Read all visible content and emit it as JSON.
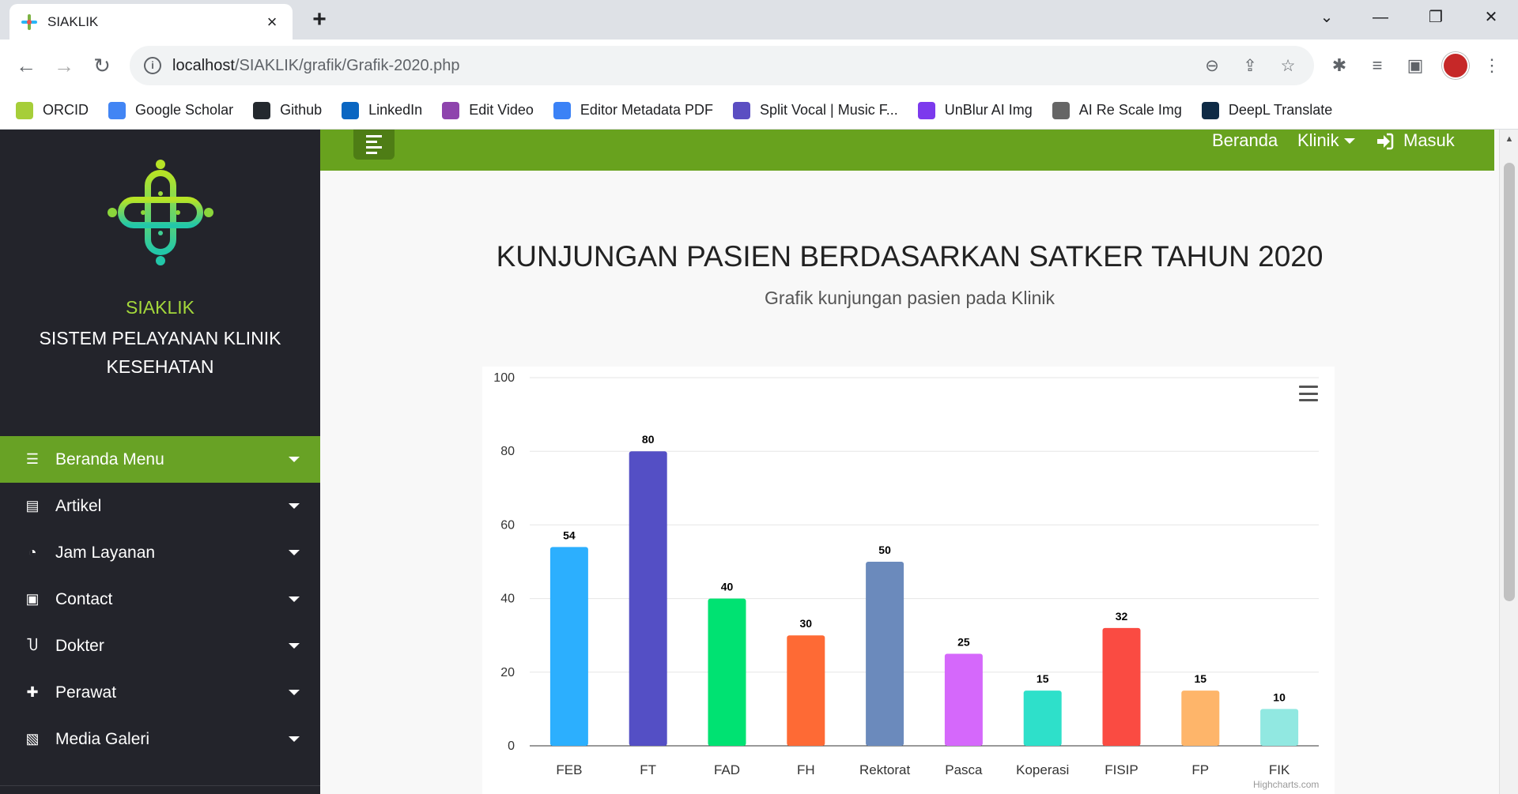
{
  "browser": {
    "tab_title": "SIAKLIK",
    "url_host": "localhost",
    "url_path": "/SIAKLIK/grafik/Grafik-2020.php",
    "bookmarks": [
      {
        "label": "ORCID",
        "icon": "orcid-icon",
        "color": "#a6ce39"
      },
      {
        "label": "Google Scholar",
        "icon": "google-scholar-icon",
        "color": "#4285f4"
      },
      {
        "label": "Github",
        "icon": "github-icon",
        "color": "#24292e"
      },
      {
        "label": "LinkedIn",
        "icon": "linkedin-icon",
        "color": "#0a66c2"
      },
      {
        "label": "Edit Video",
        "icon": "edit-video-icon",
        "color": "#8e44ad"
      },
      {
        "label": "Editor Metadata PDF",
        "icon": "metadata-pdf-icon",
        "color": "#3b82f6"
      },
      {
        "label": "Split Vocal | Music F...",
        "icon": "split-vocal-icon",
        "color": "#5b4ec2"
      },
      {
        "label": "UnBlur AI Img",
        "icon": "unblur-icon",
        "color": "#7c3aed"
      },
      {
        "label": "AI Re Scale Img",
        "icon": "rescale-icon",
        "color": "#666666"
      },
      {
        "label": "DeepL Translate",
        "icon": "deepl-icon",
        "color": "#0f2b46"
      }
    ]
  },
  "sidebar": {
    "brand_name": "SIAKLIK",
    "brand_subtitle": "SISTEM PELAYANAN KLINIK KESEHATAN",
    "menu": [
      {
        "label": "Beranda Menu",
        "icon": "list-icon",
        "active": true
      },
      {
        "label": "Artikel",
        "icon": "newspaper-icon",
        "active": false
      },
      {
        "label": "Jam Layanan",
        "icon": "clock-icon",
        "active": false
      },
      {
        "label": "Contact",
        "icon": "contact-icon",
        "active": false
      },
      {
        "label": "Dokter",
        "icon": "stethoscope-icon",
        "active": false
      },
      {
        "label": "Perawat",
        "icon": "medkit-icon",
        "active": false
      },
      {
        "label": "Media Galeri",
        "icon": "images-icon",
        "active": false
      }
    ]
  },
  "topnav": {
    "beranda": "Beranda",
    "klinik": "Klinik",
    "masuk": "Masuk"
  },
  "page": {
    "title": "KUNJUNGAN PASIEN BERDASARKAN SATKER TAHUN 2020",
    "subtitle": "Grafik kunjungan pasien pada Klinik"
  },
  "colors": {
    "sidebar_bg": "#23242b",
    "accent_green": "#68a21e",
    "brand_green": "#a4d83b"
  },
  "chart_data": {
    "type": "bar",
    "categories": [
      "FEB",
      "FT",
      "FAD",
      "FH",
      "Rektorat",
      "Pasca",
      "Koperasi",
      "FISIP",
      "FP",
      "FIK"
    ],
    "values": [
      54,
      80,
      40,
      30,
      50,
      25,
      15,
      32,
      15,
      10
    ],
    "colors": [
      "#2caffe",
      "#544fc5",
      "#00e272",
      "#fe6a35",
      "#6b8abc",
      "#d568fb",
      "#2ee0ca",
      "#fa4b42",
      "#feb56a",
      "#91e8e1"
    ],
    "ylim": [
      0,
      100
    ],
    "yticks": [
      0,
      20,
      40,
      60,
      80,
      100
    ],
    "grid": true,
    "data_labels": true,
    "credits": "Highcharts.com"
  }
}
